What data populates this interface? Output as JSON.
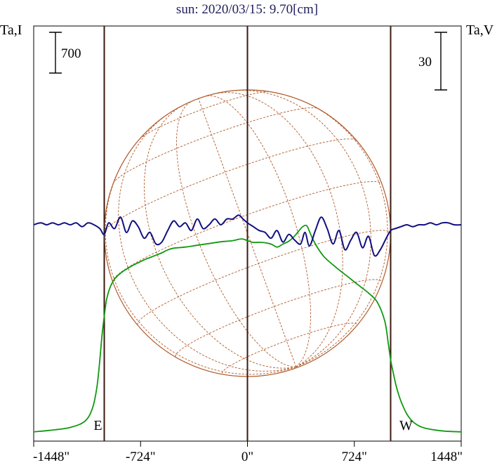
{
  "chart_data": {
    "type": "line",
    "title": "sun: 2020/03/15: 9.70[cm]",
    "left_axis_label": "Ta,I",
    "right_axis_label": "Ta,V",
    "scale_bar_left": "700",
    "scale_bar_right": "30",
    "x_ticks": [
      {
        "value": -1448,
        "label": "-1448\""
      },
      {
        "value": -724,
        "label": "-724\""
      },
      {
        "value": 0,
        "label": "0\""
      },
      {
        "value": 724,
        "label": "724\""
      },
      {
        "value": 1448,
        "label": "1448\""
      }
    ],
    "xlim": [
      -1448,
      1448
    ],
    "limb_markers": [
      {
        "value": -970,
        "label": "E"
      },
      {
        "value": 970,
        "label": "W"
      }
    ],
    "center_line": 0,
    "solar_disk": {
      "radius": 970,
      "grid": "heliographic latitude/longitude",
      "color": "#b05a2a"
    },
    "series": [
      {
        "name": "Ta,I",
        "color": "#119911",
        "x": [
          -1448,
          -1340,
          -1200,
          -1100,
          -1050,
          -1020,
          -1000,
          -985,
          -970,
          -955,
          -930,
          -900,
          -860,
          -820,
          -780,
          -740,
          -700,
          -660,
          -620,
          -580,
          -540,
          -500,
          -420,
          -340,
          -260,
          -180,
          -100,
          -40,
          0,
          40,
          100,
          160,
          200,
          240,
          280,
          320,
          370,
          400,
          420,
          440,
          470,
          520,
          600,
          680,
          760,
          820,
          880,
          930,
          955,
          970,
          990,
          1010,
          1040,
          1080,
          1120,
          1160,
          1200,
          1260,
          1340,
          1448
        ],
        "values": [
          15,
          40,
          90,
          200,
          420,
          780,
          1250,
          1680,
          2000,
          2280,
          2500,
          2640,
          2740,
          2810,
          2870,
          2920,
          2970,
          3010,
          3050,
          3090,
          3140,
          3170,
          3190,
          3220,
          3250,
          3280,
          3300,
          3330,
          3300,
          3270,
          3270,
          3240,
          3190,
          3240,
          3290,
          3380,
          3530,
          3560,
          3460,
          3340,
          3200,
          3020,
          2840,
          2680,
          2520,
          2400,
          2240,
          1920,
          1520,
          1250,
          1000,
          780,
          540,
          320,
          190,
          120,
          80,
          50,
          25,
          15
        ]
      },
      {
        "name": "Ta,V",
        "color": "#101080",
        "x": [
          -1448,
          -1400,
          -1360,
          -1320,
          -1280,
          -1240,
          -1200,
          -1160,
          -1120,
          -1080,
          -1040,
          -1000,
          -970,
          -940,
          -900,
          -860,
          -820,
          -780,
          -740,
          -700,
          -660,
          -620,
          -580,
          -540,
          -500,
          -460,
          -420,
          -380,
          -340,
          -300,
          -260,
          -220,
          -180,
          -140,
          -100,
          -60,
          -30,
          0,
          40,
          80,
          120,
          160,
          200,
          240,
          280,
          320,
          360,
          390,
          420,
          460,
          500,
          540,
          580,
          620,
          660,
          700,
          740,
          780,
          820,
          860,
          900,
          940,
          970,
          1000,
          1040,
          1080,
          1120,
          1160,
          1200,
          1240,
          1280,
          1320,
          1360,
          1400,
          1448
        ],
        "values": [
          0,
          1,
          0,
          1,
          0,
          1,
          0,
          1,
          -1,
          1,
          0,
          -2,
          -5,
          1,
          -2,
          4,
          -4,
          2,
          -1,
          -7,
          -4,
          -10,
          -9,
          -3,
          2,
          -1,
          1,
          -3,
          3,
          -2,
          0,
          3,
          0,
          3,
          3,
          5,
          3,
          1,
          -1,
          -3,
          -4,
          -7,
          -3,
          -9,
          -5,
          -8,
          -10,
          -4,
          -11,
          -3,
          4,
          -2,
          -10,
          -3,
          -13,
          -8,
          -4,
          -12,
          -6,
          -16,
          -13,
          -7,
          -3,
          -2,
          -1,
          0,
          -1,
          0,
          0,
          1,
          0,
          1,
          1,
          0,
          0
        ]
      }
    ]
  }
}
